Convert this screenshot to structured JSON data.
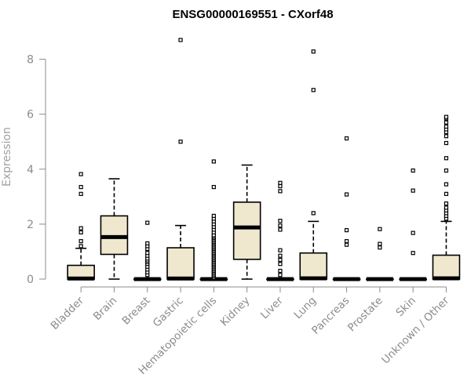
{
  "chart_data": {
    "type": "boxplot",
    "title": "ENSG00000169551 - CXorf48",
    "xlabel": "",
    "ylabel": "Expression",
    "ylim": [
      0,
      8.9
    ],
    "yticks": [
      0,
      2,
      4,
      6,
      8
    ],
    "grid": false,
    "legend": "none",
    "box_fill": "#efe8cf",
    "line_color": "#000000",
    "axis_color": "#8c8c8c",
    "categories": [
      "Bladder",
      "Brain",
      "Breast",
      "Gastric",
      "Hematopoietic cells",
      "Kidney",
      "Liver",
      "Lung",
      "Pancreas",
      "Prostate",
      "Skin",
      "Unknown / Other"
    ],
    "boxes": [
      {
        "q1": 0,
        "median": 0.02,
        "q3": 0.5,
        "whisker_low": 0,
        "whisker_high": 1.12,
        "outliers": [
          1.2,
          1.38,
          1.7,
          1.85,
          3.1,
          3.35,
          3.82
        ]
      },
      {
        "q1": 0.9,
        "median": 1.53,
        "q3": 2.3,
        "whisker_low": 0,
        "whisker_high": 3.65,
        "outliers": []
      },
      {
        "q1": 0,
        "median": 0,
        "q3": 0,
        "whisker_low": 0,
        "whisker_high": 0,
        "outliers": [
          0.15,
          0.25,
          0.35,
          0.45,
          0.55,
          0.62,
          0.68,
          0.75,
          0.85,
          0.95,
          1.1,
          1.2,
          1.3,
          2.05
        ]
      },
      {
        "q1": 0,
        "median": 0.02,
        "q3": 1.14,
        "whisker_low": 0,
        "whisker_high": 1.95,
        "outliers": [
          5.0,
          8.7
        ]
      },
      {
        "q1": 0,
        "median": 0,
        "q3": 0,
        "whisker_low": 0,
        "whisker_high": 0,
        "outliers": [
          0.05,
          0.1,
          0.15,
          0.2,
          0.25,
          0.3,
          0.35,
          0.4,
          0.45,
          0.5,
          0.55,
          0.6,
          0.65,
          0.7,
          0.75,
          0.8,
          0.85,
          0.9,
          0.95,
          1.0,
          1.05,
          1.1,
          1.15,
          1.2,
          1.25,
          1.3,
          1.35,
          1.4,
          1.45,
          1.5,
          1.55,
          1.6,
          1.7,
          1.8,
          1.9,
          2.0,
          2.1,
          2.2,
          2.3,
          3.35,
          4.28
        ]
      },
      {
        "q1": 0.72,
        "median": 1.88,
        "q3": 2.8,
        "whisker_low": 0,
        "whisker_high": 4.15,
        "outliers": []
      },
      {
        "q1": 0,
        "median": 0,
        "q3": 0,
        "whisker_low": 0,
        "whisker_high": 0,
        "outliers": [
          0.15,
          0.3,
          0.55,
          0.7,
          0.85,
          1.05,
          1.8,
          1.95,
          2.12,
          3.2,
          3.38,
          3.5
        ]
      },
      {
        "q1": 0,
        "median": 0.03,
        "q3": 0.95,
        "whisker_low": 0,
        "whisker_high": 2.1,
        "outliers": [
          2.4,
          6.88,
          8.28
        ]
      },
      {
        "q1": 0,
        "median": 0,
        "q3": 0,
        "whisker_low": 0,
        "whisker_high": 0,
        "outliers": [
          1.25,
          1.38,
          1.78,
          3.08,
          5.12
        ]
      },
      {
        "q1": 0,
        "median": 0,
        "q3": 0,
        "whisker_low": 0,
        "whisker_high": 0,
        "outliers": [
          1.15,
          1.28,
          1.82
        ]
      },
      {
        "q1": 0,
        "median": 0,
        "q3": 0,
        "whisker_low": 0,
        "whisker_high": 0,
        "outliers": [
          0.95,
          1.68,
          3.22,
          3.95
        ]
      },
      {
        "q1": 0,
        "median": 0.03,
        "q3": 0.87,
        "whisker_low": 0,
        "whisker_high": 2.1,
        "outliers": [
          2.2,
          2.3,
          2.4,
          2.5,
          2.6,
          2.75,
          3.1,
          3.45,
          3.95,
          4.4,
          4.95,
          5.2,
          5.35,
          5.45,
          5.55,
          5.7,
          5.85,
          5.9
        ]
      }
    ]
  }
}
